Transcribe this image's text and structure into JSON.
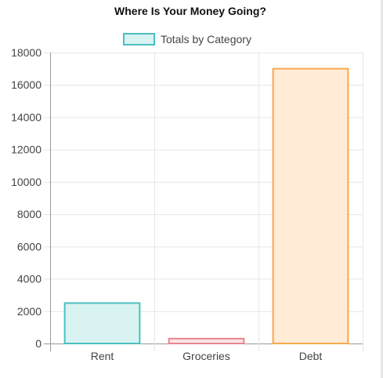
{
  "chart_data": {
    "type": "bar",
    "title": "Where Is Your Money Going?",
    "categories": [
      "Rent",
      "Groceries",
      "Debt"
    ],
    "series": [
      {
        "name": "Totals by Category",
        "values": [
          2500,
          300,
          17000
        ]
      }
    ],
    "bar_colors": [
      {
        "fill": "#d9f2f2",
        "stroke": "#4bc0c0"
      },
      {
        "fill": "#fbe3e6",
        "stroke": "#e8858f"
      },
      {
        "fill": "#ffebd6",
        "stroke": "#f8a94a"
      }
    ],
    "legend": {
      "fill": "#d9f2f2",
      "stroke": "#4bc0c0",
      "placement": "top"
    },
    "ylim": [
      0,
      18000
    ],
    "yticks": [
      0,
      2000,
      4000,
      6000,
      8000,
      10000,
      12000,
      14000,
      16000,
      18000
    ],
    "grid": true,
    "xlabel": "",
    "ylabel": ""
  }
}
